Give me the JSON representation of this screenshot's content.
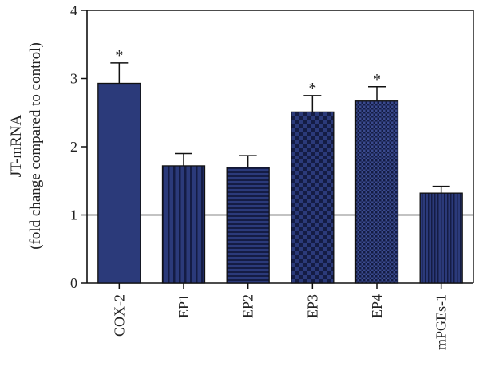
{
  "chart_data": {
    "type": "bar",
    "ylabel_line1": "JT-mRNA",
    "ylabel_line2": "(fold change compared to control)",
    "ylim": [
      0,
      4
    ],
    "yticks": [
      0,
      1,
      2,
      3,
      4
    ],
    "reference_line": 1,
    "grid": false,
    "categories": [
      "COX-2",
      "EP1",
      "EP2",
      "EP3",
      "EP4",
      "mPGEs-1"
    ],
    "values": [
      2.93,
      1.72,
      1.7,
      2.51,
      2.67,
      1.32
    ],
    "errors": [
      0.3,
      0.18,
      0.17,
      0.24,
      0.21,
      0.1
    ],
    "significance": [
      "*",
      "",
      "",
      "*",
      "*",
      ""
    ],
    "fill_patterns": [
      "solid",
      "vertical-stripes",
      "horizontal-stripes",
      "checker-large",
      "checker-small",
      "vertical-fine"
    ],
    "colors": {
      "bar": "#2b3a7a",
      "bar_dark": "#141c44",
      "outline": "#111111",
      "axis": "#111111"
    }
  }
}
